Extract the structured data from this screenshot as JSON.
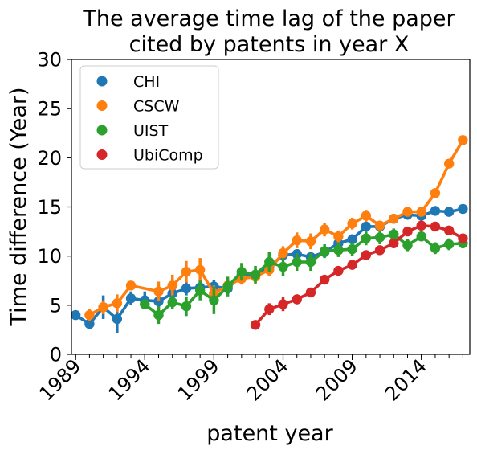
{
  "chart_data": {
    "type": "line",
    "title_lines": [
      "The average time lag of the paper",
      "cited by patents in year X"
    ],
    "xlabel": "patent year",
    "ylabel": "Time difference (Year)",
    "xlim": [
      1988.7,
      2017.5
    ],
    "ylim": [
      0,
      30
    ],
    "xticks": [
      1989,
      1994,
      1999,
      2004,
      2009,
      2014
    ],
    "xtick_labels": [
      "1989",
      "1994",
      "1999",
      "2004",
      "2009",
      "2014"
    ],
    "yticks": [
      0,
      5,
      10,
      15,
      20,
      25,
      30
    ],
    "ytick_labels": [
      "0",
      "5",
      "10",
      "15",
      "20",
      "25",
      "30"
    ],
    "grid": false,
    "legend_placement": "top-left",
    "series": [
      {
        "name": "CHI",
        "color": "#1f77b4",
        "points": [
          [
            1989,
            4.0,
            4.0,
            4.0
          ],
          [
            1990,
            3.1,
            2.6,
            3.6
          ],
          [
            1991,
            4.8,
            3.6,
            6.0
          ],
          [
            1992,
            3.6,
            2.2,
            5.0
          ],
          [
            1993,
            5.7,
            5.0,
            6.4
          ],
          [
            1994,
            5.5,
            4.6,
            6.4
          ],
          [
            1995,
            5.4,
            4.6,
            6.3
          ],
          [
            1996,
            6.2,
            5.4,
            7.0
          ],
          [
            1997,
            6.7,
            6.0,
            7.4
          ],
          [
            1998,
            6.8,
            6.1,
            7.5
          ],
          [
            1999,
            6.9,
            6.2,
            7.6
          ],
          [
            2000,
            6.7,
            6.1,
            7.3
          ],
          [
            2001,
            8.1,
            7.5,
            8.7
          ],
          [
            2002,
            8.1,
            7.5,
            8.7
          ],
          [
            2003,
            8.9,
            8.3,
            9.5
          ],
          [
            2004,
            10.1,
            9.6,
            10.6
          ],
          [
            2005,
            10.2,
            9.7,
            10.7
          ],
          [
            2006,
            9.9,
            9.4,
            10.4
          ],
          [
            2007,
            10.4,
            9.9,
            10.9
          ],
          [
            2008,
            11.3,
            10.8,
            11.8
          ],
          [
            2009,
            11.7,
            11.2,
            12.2
          ],
          [
            2010,
            13.0,
            12.6,
            13.4
          ],
          [
            2011,
            13.0,
            12.6,
            13.4
          ],
          [
            2012,
            13.8,
            13.5,
            14.1
          ],
          [
            2013,
            14.2,
            13.9,
            14.5
          ],
          [
            2014,
            14.1,
            13.8,
            14.4
          ],
          [
            2015,
            14.6,
            14.3,
            14.9
          ],
          [
            2016,
            14.5,
            14.2,
            14.8
          ],
          [
            2017,
            14.8,
            14.5,
            15.1
          ]
        ]
      },
      {
        "name": "CSCW",
        "color": "#ff7f0e",
        "points": [
          [
            1990,
            4.0,
            3.4,
            4.6
          ],
          [
            1991,
            4.8,
            4.1,
            5.5
          ],
          [
            1992,
            5.2,
            4.3,
            6.1
          ],
          [
            1993,
            7.0,
            6.6,
            7.4
          ],
          [
            1995,
            6.4,
            5.4,
            7.4
          ],
          [
            1996,
            7.0,
            5.9,
            8.1
          ],
          [
            1997,
            8.4,
            7.3,
            9.5
          ],
          [
            1998,
            8.6,
            7.4,
            9.8
          ],
          [
            1999,
            6.2,
            5.4,
            7.0
          ],
          [
            2000,
            7.0,
            6.3,
            7.7
          ],
          [
            2001,
            7.7,
            7.1,
            8.3
          ],
          [
            2002,
            7.9,
            7.3,
            8.5
          ],
          [
            2003,
            8.6,
            8.0,
            9.2
          ],
          [
            2004,
            10.3,
            9.6,
            11.0
          ],
          [
            2005,
            11.6,
            10.8,
            12.4
          ],
          [
            2006,
            11.5,
            10.7,
            12.3
          ],
          [
            2007,
            12.7,
            12.0,
            13.4
          ],
          [
            2008,
            12.0,
            11.4,
            12.6
          ],
          [
            2009,
            13.3,
            12.7,
            13.9
          ],
          [
            2010,
            14.1,
            13.5,
            14.7
          ],
          [
            2011,
            13.1,
            12.6,
            13.6
          ],
          [
            2012,
            13.8,
            13.4,
            14.2
          ],
          [
            2013,
            14.5,
            14.1,
            14.9
          ],
          [
            2014,
            14.5,
            14.1,
            14.9
          ],
          [
            2015,
            16.4,
            16.0,
            16.8
          ],
          [
            2016,
            19.4,
            19.1,
            19.7
          ],
          [
            2017,
            21.8,
            21.5,
            22.1
          ]
        ]
      },
      {
        "name": "UIST",
        "color": "#2ca02c",
        "points": [
          [
            1994,
            5.1,
            4.6,
            5.6
          ],
          [
            1995,
            4.0,
            3.1,
            4.9
          ],
          [
            1996,
            5.3,
            4.6,
            6.0
          ],
          [
            1997,
            4.9,
            3.9,
            5.9
          ],
          [
            1998,
            6.5,
            5.5,
            7.5
          ],
          [
            1999,
            5.5,
            4.1,
            6.9
          ],
          [
            2000,
            6.9,
            5.9,
            7.9
          ],
          [
            2001,
            8.4,
            7.5,
            9.3
          ],
          [
            2002,
            8.1,
            7.2,
            9.0
          ],
          [
            2003,
            9.4,
            8.4,
            10.4
          ],
          [
            2004,
            8.9,
            8.0,
            9.8
          ],
          [
            2005,
            9.4,
            8.5,
            10.3
          ],
          [
            2006,
            9.4,
            8.5,
            10.3
          ],
          [
            2007,
            10.5,
            9.8,
            11.2
          ],
          [
            2008,
            10.6,
            9.9,
            11.3
          ],
          [
            2009,
            10.7,
            10.0,
            11.4
          ],
          [
            2010,
            11.8,
            11.1,
            12.5
          ],
          [
            2011,
            11.9,
            11.2,
            12.6
          ],
          [
            2012,
            12.2,
            11.6,
            12.8
          ],
          [
            2013,
            11.1,
            10.5,
            11.7
          ],
          [
            2014,
            12.0,
            11.5,
            12.5
          ],
          [
            2015,
            10.8,
            10.2,
            11.4
          ],
          [
            2016,
            11.2,
            10.6,
            11.8
          ],
          [
            2017,
            11.3,
            10.8,
            11.8
          ]
        ]
      },
      {
        "name": "UbiComp",
        "color": "#d62728",
        "points": [
          [
            2002,
            3.0,
            3.0,
            3.0
          ],
          [
            2003,
            4.6,
            4.0,
            5.2
          ],
          [
            2004,
            5.1,
            4.4,
            5.8
          ],
          [
            2005,
            5.6,
            5.1,
            6.1
          ],
          [
            2006,
            6.3,
            5.9,
            6.7
          ],
          [
            2007,
            7.6,
            7.3,
            7.9
          ],
          [
            2008,
            8.5,
            8.2,
            8.8
          ],
          [
            2009,
            9.1,
            8.8,
            9.4
          ],
          [
            2010,
            10.1,
            9.8,
            10.4
          ],
          [
            2011,
            10.6,
            10.3,
            10.9
          ],
          [
            2012,
            11.3,
            11.0,
            11.6
          ],
          [
            2013,
            12.5,
            12.2,
            12.8
          ],
          [
            2014,
            13.1,
            12.8,
            13.4
          ],
          [
            2015,
            13.0,
            12.7,
            13.3
          ],
          [
            2016,
            12.6,
            12.3,
            12.9
          ],
          [
            2017,
            11.8,
            11.5,
            12.1
          ]
        ]
      }
    ]
  }
}
